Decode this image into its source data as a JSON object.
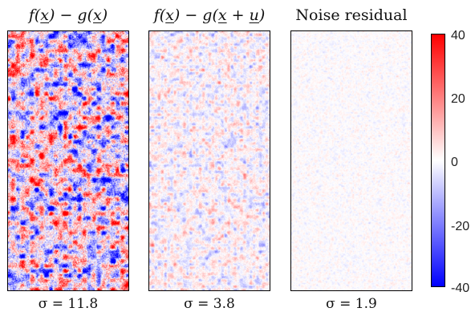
{
  "panels": [
    {
      "title_parts": [
        "f(",
        "x",
        ") − g(",
        "x",
        ")"
      ],
      "sigma_label": "σ = 11.8",
      "sigma": 11.8
    },
    {
      "title_parts": [
        "f(",
        "x",
        ") − g(",
        "x",
        " + ",
        "u",
        ")"
      ],
      "sigma_label": "σ = 3.8",
      "sigma": 3.8
    },
    {
      "title": "Noise residual",
      "sigma_label": "σ = 1.9",
      "sigma": 1.9
    }
  ],
  "colorbar": {
    "ticks": [
      "40",
      "20",
      "0",
      "-20",
      "-40"
    ],
    "range": [
      -40,
      40
    ],
    "colors": {
      "max": "#ff0000",
      "mid": "#ffffff",
      "min": "#0000ff"
    }
  }
}
